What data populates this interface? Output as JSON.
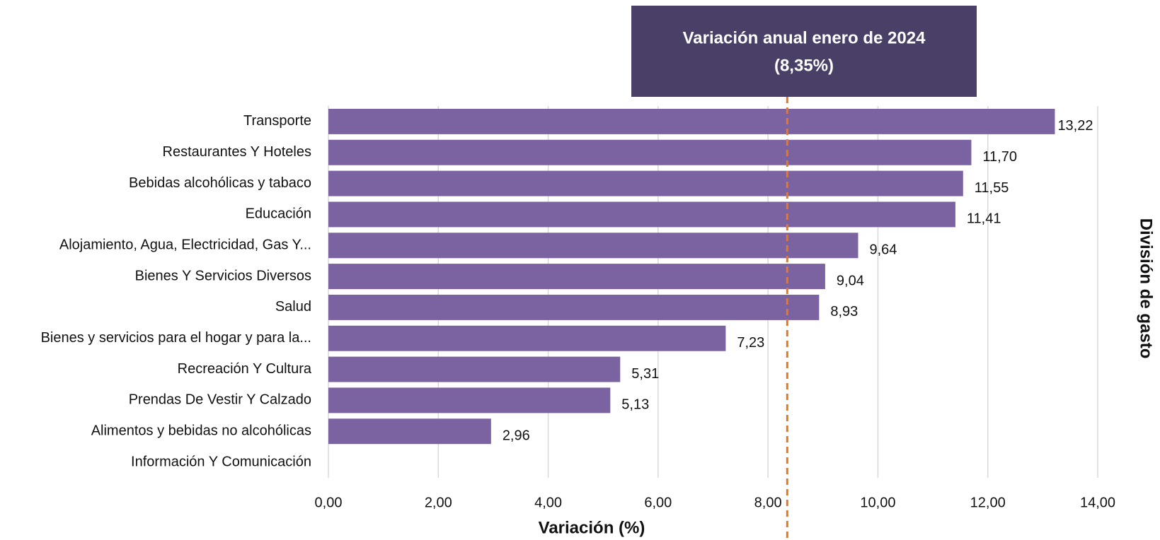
{
  "chart_data": {
    "type": "bar",
    "orientation": "horizontal",
    "x_label": "Variación (%)",
    "y_label": "División de gasto",
    "categories": [
      "Transporte",
      "Restaurantes Y Hoteles",
      "Bebidas alcohólicas y tabaco",
      "Educación",
      "Alojamiento, Agua, Electricidad, Gas Y...",
      "Bienes Y Servicios Diversos",
      "Salud",
      "Bienes y servicios para el hogar y para la...",
      "Recreación Y Cultura",
      "Prendas De Vestir Y Calzado",
      "Alimentos y bebidas no alcohólicas",
      "Información Y Comunicación"
    ],
    "values": [
      13.22,
      11.7,
      11.55,
      11.41,
      9.64,
      9.04,
      8.93,
      7.23,
      5.31,
      5.13,
      2.96,
      null
    ],
    "value_labels": [
      "13,22",
      "11,70",
      "11,55",
      "11,41",
      "9,64",
      "9,04",
      "8,93",
      "7,23",
      "5,31",
      "5,13",
      "2,96",
      null
    ],
    "color": "#7b62a0",
    "xlim": [
      0,
      14
    ],
    "xticks": [
      {
        "value": 0,
        "label": "0,00"
      },
      {
        "value": 2,
        "label": "2,00"
      },
      {
        "value": 4,
        "label": "4,00"
      },
      {
        "value": 6,
        "label": "6,00"
      },
      {
        "value": 8,
        "label": "8,00"
      },
      {
        "value": 10,
        "label": "10,00"
      },
      {
        "value": 12,
        "label": "12,00"
      },
      {
        "value": 14,
        "label": "14,00"
      }
    ],
    "grid": true,
    "reference_line": {
      "title": "Variación anual enero de 2024",
      "value": 8.35,
      "label": "(8,35%)",
      "color": "#e87722",
      "box_color": "#4a3f66"
    }
  }
}
